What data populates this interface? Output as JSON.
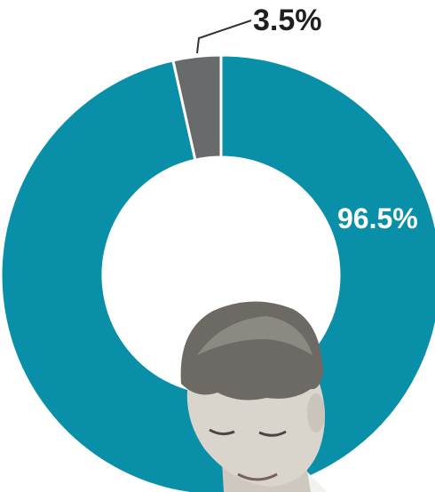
{
  "chart_data": {
    "type": "pie",
    "donut": true,
    "title": "",
    "categories": [
      "",
      ""
    ],
    "values": [
      96.5,
      3.5
    ],
    "labels": [
      "96.5%",
      "3.5%"
    ],
    "colors": [
      "#0a8fa9",
      "#686a6c"
    ],
    "legend": "none",
    "grid": false
  },
  "photo": {
    "icon": "child-photo",
    "hair_color": "#6d6a65",
    "skin_color": "#d9d4cc"
  }
}
